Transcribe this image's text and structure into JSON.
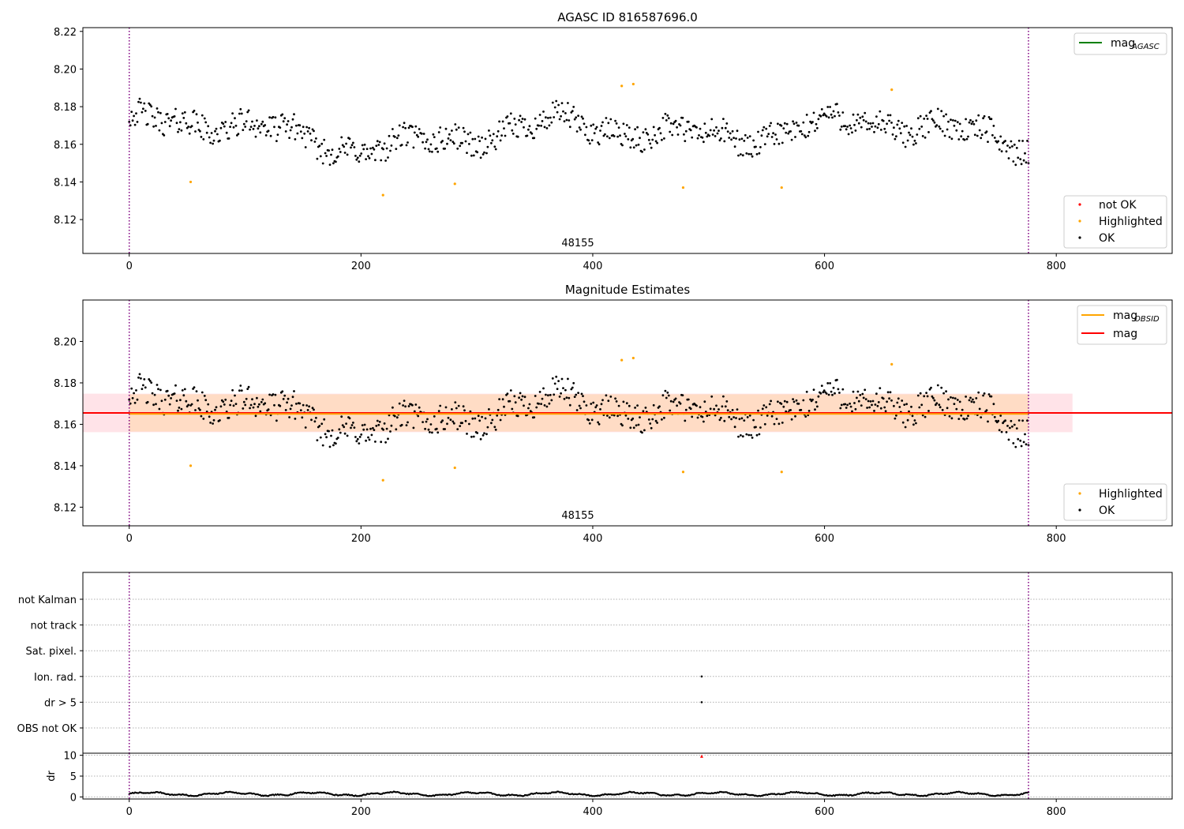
{
  "colors": {
    "ok": "#000000",
    "highlighted": "#ffa500",
    "not_ok": "#ff0000",
    "mag_agasc": "#008000",
    "mag_obsid": "#ffa500",
    "mag": "#ff0000",
    "band_outer": "#ffc0cb",
    "band_inner": "#ffdab9",
    "vline": "#800080"
  },
  "chart_data": [
    {
      "type": "scatter",
      "title": "AGASC ID 816587696.0",
      "xlim": [
        -40,
        900
      ],
      "ylim": [
        8.102,
        8.222
      ],
      "xticks": [
        "0",
        "200",
        "400",
        "600",
        "800"
      ],
      "yticks": [
        "8.12",
        "8.14",
        "8.16",
        "8.18",
        "8.20",
        "8.22"
      ],
      "obsid_label": "48155",
      "obsid_bounds": [
        0,
        776
      ],
      "legend_lines": [
        {
          "label": "mag",
          "sub": "AGASC"
        }
      ],
      "legend_points": [
        "not OK",
        "Highlighted",
        "OK"
      ],
      "series": [
        {
          "name": "OK",
          "n_points": 776,
          "x_range": [
            0,
            776
          ],
          "y_level": 8.166,
          "y_range": [
            8.143,
            8.19
          ]
        },
        {
          "name": "Highlighted",
          "points": [
            [
              53,
              8.14
            ],
            [
              219,
              8.133
            ],
            [
              281,
              8.139
            ],
            [
              425,
              8.191
            ],
            [
              435,
              8.192
            ],
            [
              478,
              8.137
            ],
            [
              563,
              8.137
            ],
            [
              658,
              8.189
            ]
          ]
        }
      ]
    },
    {
      "type": "scatter",
      "title": "Magnitude Estimates",
      "xlim": [
        -40,
        900
      ],
      "ylim": [
        8.111,
        8.22
      ],
      "xticks": [
        "0",
        "200",
        "400",
        "600",
        "800"
      ],
      "yticks": [
        "8.12",
        "8.14",
        "8.16",
        "8.18",
        "8.20"
      ],
      "obsid_label": "48155",
      "obsid_bounds": [
        0,
        776
      ],
      "mag": 8.1655,
      "mag_obsid": 8.165,
      "band_outer": [
        8.1562,
        8.1748
      ],
      "band_inner": [
        8.1565,
        8.1745
      ],
      "band_outer_x": [
        -40,
        814
      ],
      "band_inner_x": [
        0,
        776
      ],
      "legend_lines": [
        {
          "label": "mag",
          "sub": "OBSID"
        },
        {
          "label": "mag",
          "sub": ""
        }
      ],
      "legend_points": [
        "Highlighted",
        "OK"
      ],
      "series": [
        {
          "name": "OK",
          "n_points": 776,
          "x_range": [
            0,
            776
          ],
          "y_level": 8.166,
          "y_range": [
            8.143,
            8.19
          ]
        },
        {
          "name": "Highlighted",
          "points": [
            [
              53,
              8.14
            ],
            [
              219,
              8.133
            ],
            [
              281,
              8.139
            ],
            [
              425,
              8.191
            ],
            [
              435,
              8.192
            ],
            [
              478,
              8.137
            ],
            [
              563,
              8.137
            ],
            [
              658,
              8.189
            ]
          ]
        }
      ]
    },
    {
      "type": "scatter",
      "title": "",
      "xlim": [
        -40,
        900
      ],
      "flag_labels": [
        "not Kalman",
        "not track",
        "Sat. pixel.",
        "Ion. rad.",
        "dr > 5",
        "OBS not OK"
      ],
      "flag_points": [
        {
          "flag": "Ion. rad.",
          "x": 494
        },
        {
          "flag": "dr > 5",
          "x": 494
        }
      ],
      "obsid_bounds": [
        0,
        776
      ]
    },
    {
      "type": "scatter",
      "title": "",
      "xlim": [
        -40,
        900
      ],
      "ylim": [
        -0.5,
        10.5
      ],
      "ylabel": "dr",
      "xticks": [
        "0",
        "200",
        "400",
        "600",
        "800"
      ],
      "yticks": [
        "0",
        "5",
        "10"
      ],
      "obsid_bounds": [
        0,
        776
      ],
      "series": [
        {
          "name": "OK",
          "n_points": 776,
          "x_range": [
            0,
            776
          ],
          "y_range": [
            0.2,
            1.3
          ]
        },
        {
          "name": "not OK",
          "points": [
            [
              494,
              9.8
            ]
          ]
        }
      ]
    }
  ]
}
